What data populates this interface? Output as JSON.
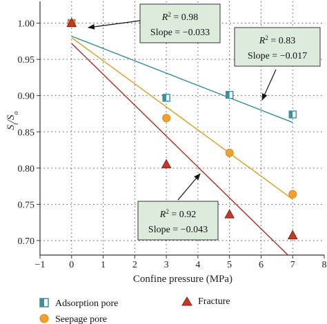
{
  "chart_data": {
    "type": "scatter",
    "xlabel": "Confine pressure (MPa)",
    "ylabel_main": "S",
    "ylabel_sub": "t",
    "ylabel_sep": "/S",
    "ylabel_sub2": "o",
    "xlim": [
      -1,
      8
    ],
    "ylim": [
      0.68,
      1.03
    ],
    "xticks": [
      -1,
      0,
      1,
      2,
      3,
      4,
      5,
      6,
      7,
      8
    ],
    "yticks": [
      0.7,
      0.75,
      0.8,
      0.85,
      0.9,
      0.95,
      1.0
    ],
    "ytick_labels": [
      "0.70",
      "0.75",
      "0.80",
      "0.85",
      "0.90",
      "0.95",
      "1.00"
    ],
    "grid": "dotted",
    "series": [
      {
        "name": "Adsorption pore",
        "marker": "half-square",
        "color": "#3a8fa0",
        "fit_color": "#2f8f9a",
        "x": [
          0,
          3,
          5,
          7
        ],
        "y": [
          1.0,
          0.897,
          0.901,
          0.874
        ],
        "fit": {
          "x": [
            0,
            7
          ],
          "y": [
            0.982,
            0.863
          ]
        }
      },
      {
        "name": "Seepage pore",
        "marker": "circle",
        "color": "#f0a030",
        "fit_color": "#e39a1d",
        "x": [
          0,
          3,
          5,
          7
        ],
        "y": [
          1.0,
          0.869,
          0.821,
          0.764
        ],
        "fit": {
          "x": [
            0,
            7
          ],
          "y": [
            0.98,
            0.757
          ]
        }
      },
      {
        "name": "Fracture",
        "marker": "triangle",
        "color": "#c0392b",
        "fit_color": "#b22a1e",
        "x": [
          0,
          3,
          5,
          7
        ],
        "y": [
          1.0,
          0.805,
          0.736,
          0.707
        ],
        "fit": {
          "x": [
            0,
            6.85
          ],
          "y": [
            0.972,
            0.68
          ]
        }
      }
    ],
    "annotations": [
      {
        "r2_label": "R",
        "r2_value": "= 0.98",
        "slope": "Slope = −0.033",
        "arrow_to": [
          0.2,
          0.982
        ]
      },
      {
        "r2_label": "R",
        "r2_value": "= 0.83",
        "slope": "Slope = −0.017",
        "arrow_to": [
          6.0,
          0.868
        ]
      },
      {
        "r2_label": "R",
        "r2_value": "= 0.92",
        "slope": "Slope = −0.043",
        "arrow_to": [
          4.0,
          0.794
        ]
      }
    ],
    "legend_placement": "bottom",
    "colors": {
      "annotation_fill": "#dcebdc",
      "annotation_border": "#333333",
      "axis": "#333333"
    }
  }
}
